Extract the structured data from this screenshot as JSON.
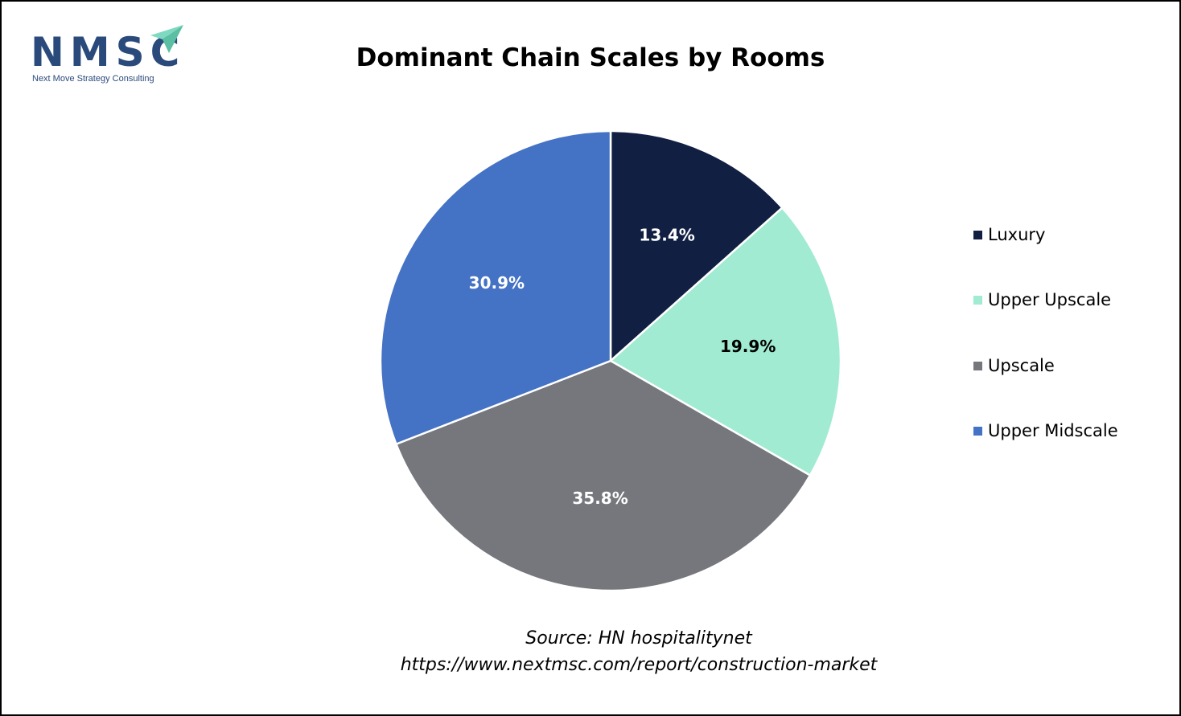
{
  "logo": {
    "text": "NMSC",
    "tagline": "Next Move Strategy Consulting",
    "colors": {
      "text": "#2b4a7c",
      "arrow": "#7ed9c1"
    },
    "icon": "paper-plane-arrow-icon"
  },
  "chart_data": {
    "type": "pie",
    "title": "Dominant Chain Scales by Rooms",
    "categories": [
      "Luxury",
      "Upper Upscale",
      "Upscale",
      "Upper Midscale"
    ],
    "values": [
      13.4,
      19.9,
      35.8,
      30.9
    ],
    "value_labels": [
      "13.4%",
      "19.9%",
      "35.8%",
      "30.9%"
    ],
    "colors": [
      "#111f42",
      "#a0ebd2",
      "#75777c",
      "#4472c4"
    ],
    "label_colors": [
      "#ffffff",
      "#000000",
      "#ffffff",
      "#ffffff"
    ],
    "start_angle": "12 o'clock",
    "direction": "clockwise",
    "legend_position": "right"
  },
  "source": {
    "line1": "Source: HN hospitalitynet",
    "line2": "https://www.nextmsc.com/report/construction-market"
  }
}
